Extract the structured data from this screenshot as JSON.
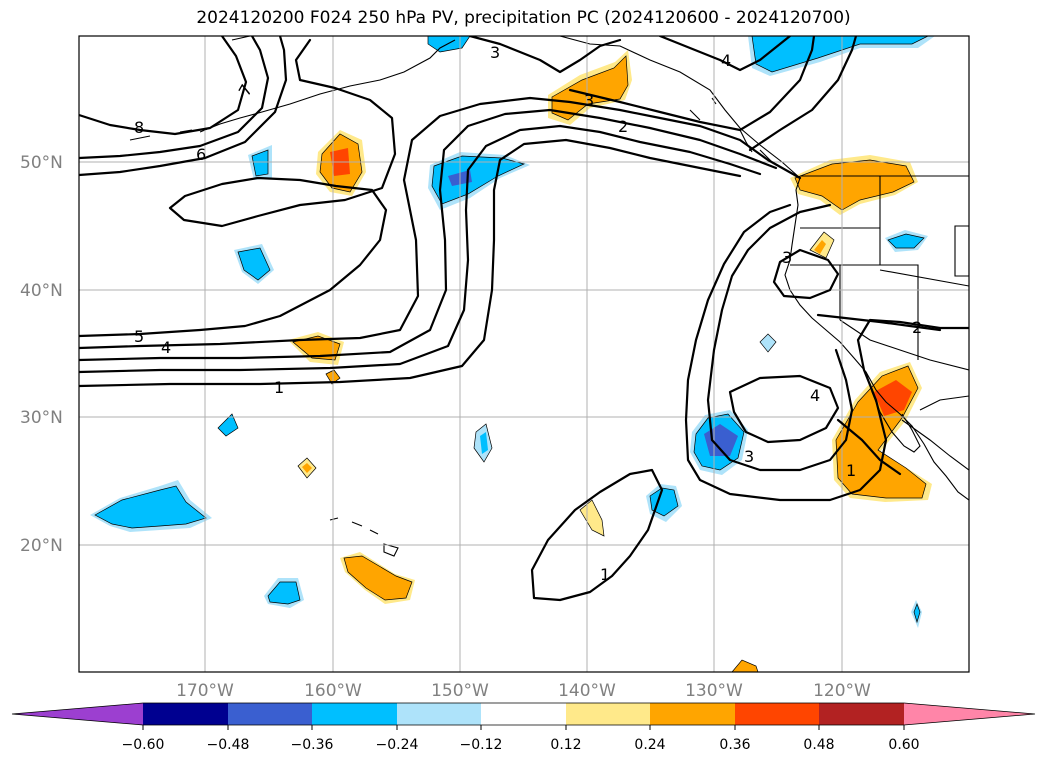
{
  "title": "2024120200 F024 250 hPa PV, precipitation PC (2024120600 - 2024120700)",
  "lat_labels": [
    "50°N",
    "40°N",
    "30°N",
    "20°N"
  ],
  "lon_labels": [
    "170°W",
    "160°W",
    "150°W",
    "140°W",
    "130°W",
    "120°W"
  ],
  "colorbar": {
    "ticks": [
      "−0.60",
      "−0.48",
      "−0.36",
      "−0.24",
      "−0.12",
      "0.12",
      "0.24",
      "0.36",
      "0.48",
      "0.60"
    ],
    "colors": {
      "below": "#9c3fd0",
      "neg_060_048": "#000090",
      "neg_048_036": "#3a5fd0",
      "neg_036_024": "#00bfff",
      "neg_024_012": "#aee3fa",
      "neutral": "#ffffff",
      "pos_012_024": "#ffe98a",
      "pos_024_036": "#ffa500",
      "pos_036_048": "#ff4500",
      "pos_048_060": "#b22222",
      "above": "#ff85a8"
    }
  },
  "contour_labels": [
    "8",
    "7",
    "6",
    "5",
    "4",
    "1",
    "3",
    "2",
    "3",
    "4",
    "3",
    "2",
    "4",
    "3",
    "1",
    "1"
  ]
}
